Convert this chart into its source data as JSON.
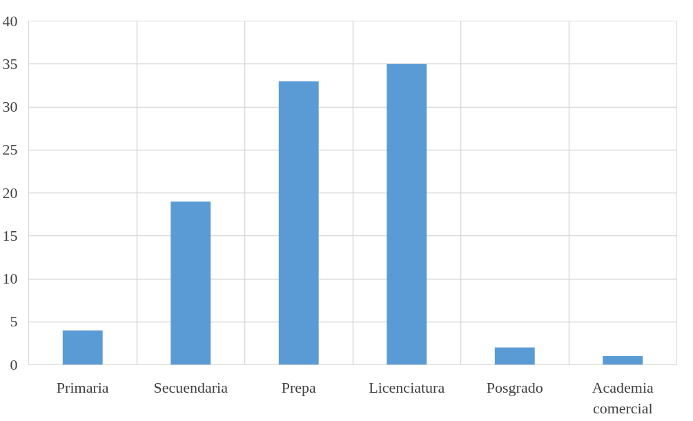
{
  "chart_data": {
    "type": "bar",
    "categories": [
      "Primaria",
      "Secuendaria",
      "Prepa",
      "Licenciatura",
      "Posgrado",
      "Academia comercial"
    ],
    "values": [
      4,
      19,
      33,
      35,
      2,
      1
    ],
    "color": "#5b9bd5",
    "ylim": [
      0,
      40
    ],
    "yticks": [
      0,
      5,
      10,
      15,
      20,
      25,
      30,
      35,
      40
    ],
    "grid": true
  }
}
